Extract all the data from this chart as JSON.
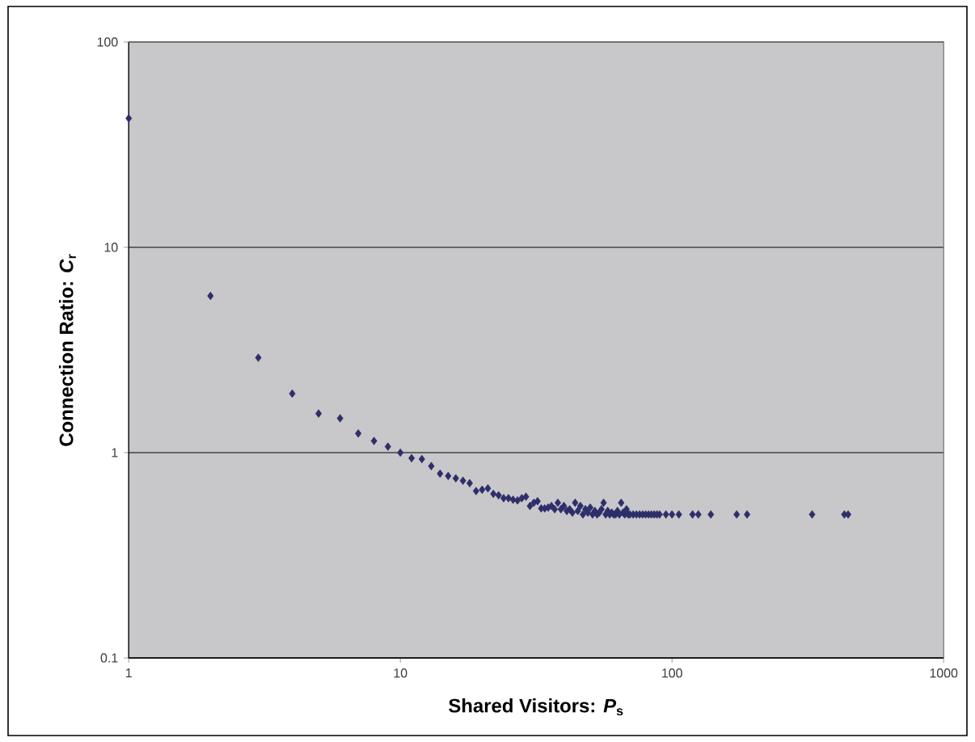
{
  "chart_data": {
    "type": "scatter",
    "xlabel": "Shared Visitors:  *P*$_{s}$",
    "ylabel": "Connection Ratio: *C*$_{r}$",
    "log": "xy",
    "grid": "y",
    "marker": "diamond",
    "color": "#2e2e6a",
    "xlim": [
      1,
      1000
    ],
    "ylim": [
      0.1,
      100
    ],
    "xticks": [
      1,
      10,
      100,
      1000
    ],
    "yticks": [
      0.1,
      1,
      10,
      100
    ],
    "x": [
      1,
      2,
      3,
      4,
      5,
      6,
      7,
      8,
      9,
      10,
      11,
      12,
      13,
      14,
      15,
      16,
      17,
      18,
      19,
      20,
      21,
      22,
      23,
      24,
      25,
      26,
      27,
      28,
      29,
      30,
      31,
      32,
      33,
      34,
      35,
      36,
      37,
      38,
      39,
      40,
      41,
      42,
      43,
      44,
      45,
      46,
      47,
      48,
      49,
      50,
      51,
      52,
      53,
      54,
      55,
      56,
      57,
      58,
      59,
      60,
      61,
      62,
      63,
      64,
      65,
      66,
      67,
      68,
      69,
      70,
      72,
      74,
      76,
      78,
      80,
      82,
      84,
      86,
      88,
      90,
      95,
      100,
      106,
      119,
      125,
      139,
      173,
      189,
      328,
      431,
      445
    ],
    "values": [
      42.5,
      5.8,
      2.9,
      1.94,
      1.55,
      1.47,
      1.24,
      1.14,
      1.07,
      1.0,
      0.94,
      0.93,
      0.86,
      0.79,
      0.77,
      0.75,
      0.73,
      0.71,
      0.65,
      0.66,
      0.67,
      0.63,
      0.62,
      0.6,
      0.6,
      0.59,
      0.585,
      0.6,
      0.61,
      0.55,
      0.57,
      0.58,
      0.535,
      0.535,
      0.54,
      0.55,
      0.53,
      0.57,
      0.53,
      0.55,
      0.52,
      0.53,
      0.51,
      0.57,
      0.52,
      0.55,
      0.5,
      0.53,
      0.51,
      0.54,
      0.5,
      0.52,
      0.5,
      0.51,
      0.53,
      0.57,
      0.5,
      0.52,
      0.5,
      0.51,
      0.5,
      0.5,
      0.52,
      0.5,
      0.57,
      0.51,
      0.5,
      0.53,
      0.5,
      0.5,
      0.5,
      0.5,
      0.5,
      0.5,
      0.5,
      0.5,
      0.5,
      0.5,
      0.5,
      0.5,
      0.5,
      0.5,
      0.5,
      0.5,
      0.5,
      0.5,
      0.5,
      0.5,
      0.5,
      0.5,
      0.5
    ]
  }
}
